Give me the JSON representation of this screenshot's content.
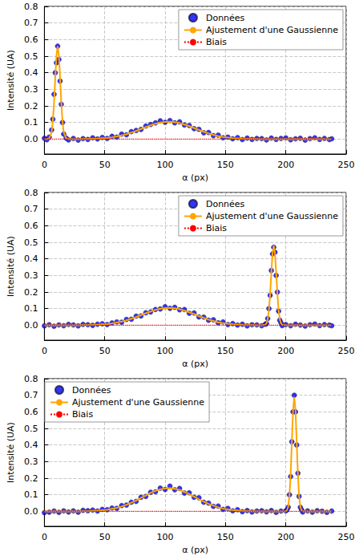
{
  "chart_data": [
    {
      "type": "scatter",
      "xlabel": "α (px)",
      "ylabel": "Intensité (UA)",
      "xlim": [
        0,
        250
      ],
      "xticks": [
        0,
        50,
        100,
        150,
        200,
        250
      ],
      "ylim": [
        -0.09,
        0.8
      ],
      "yticks": [
        {
          "value": 0,
          "label": "0.0"
        },
        0.1,
        0.2,
        0.3,
        0.4,
        0.5,
        0.6,
        0.7,
        0.8
      ],
      "grid": true,
      "legend": "upper right",
      "x": [
        0,
        2,
        4,
        6,
        7,
        8,
        9,
        10,
        11,
        12,
        13,
        14,
        15,
        16,
        18,
        20,
        24,
        28,
        32,
        36,
        40,
        44,
        48,
        52,
        56,
        60,
        64,
        68,
        72,
        76,
        80,
        84,
        88,
        92,
        96,
        100,
        104,
        108,
        112,
        116,
        120,
        124,
        128,
        132,
        136,
        140,
        144,
        148,
        152,
        156,
        160,
        164,
        168,
        172,
        176,
        180,
        184,
        188,
        192,
        196,
        200,
        204,
        208,
        212,
        216,
        220,
        224,
        228,
        232,
        236,
        238
      ],
      "series": [
        {
          "name": "Données",
          "type": "scatter",
          "marker": "circle",
          "color": "#0000ff",
          "values": [
            0.005,
            -0.004,
            0.012,
            0.055,
            0.12,
            0.27,
            0.4,
            0.46,
            0.56,
            0.48,
            0.35,
            0.21,
            0.1,
            0.03,
            0.006,
            -0.005,
            0.004,
            -0.006,
            0.003,
            -0.002,
            0.008,
            0.001,
            0.01,
            0.004,
            0.017,
            0.012,
            0.03,
            0.026,
            0.045,
            0.052,
            0.058,
            0.079,
            0.088,
            0.098,
            0.11,
            0.101,
            0.112,
            0.098,
            0.104,
            0.085,
            0.082,
            0.063,
            0.059,
            0.038,
            0.04,
            0.021,
            0.024,
            0.008,
            0.012,
            0.002,
            0.009,
            -0.003,
            0.006,
            -0.002,
            0.004,
            0.003,
            -0.005,
            0.006,
            -0.002,
            0.004,
            0.007,
            -0.004,
            0.002,
            0.005,
            -0.006,
            0.003,
            0.008,
            -0.002,
            0.004,
            -0.003,
            0.002
          ]
        },
        {
          "name": "Ajustement d'une Gaussienne",
          "type": "line",
          "line_style": "solid",
          "color": "#ffa500",
          "values": [
            0,
            0,
            0.004,
            0.042,
            0.108,
            0.221,
            0.37,
            0.505,
            0.56,
            0.505,
            0.37,
            0.221,
            0.108,
            0.042,
            0.004,
            0.001,
            0,
            0,
            0.001,
            0.001,
            0.002,
            0.003,
            0.005,
            0.007,
            0.011,
            0.016,
            0.022,
            0.03,
            0.039,
            0.049,
            0.061,
            0.072,
            0.083,
            0.093,
            0.1,
            0.104,
            0.105,
            0.102,
            0.097,
            0.088,
            0.078,
            0.067,
            0.055,
            0.044,
            0.034,
            0.026,
            0.018,
            0.013,
            0.009,
            0.006,
            0.004,
            0.002,
            0.001,
            0.001,
            0,
            0,
            0,
            0,
            0,
            0,
            0,
            0,
            0,
            0,
            0,
            0,
            0,
            0,
            0,
            0,
            0
          ]
        },
        {
          "name": "Biais",
          "type": "line",
          "line_style": "dotted",
          "color": "#ff0000",
          "x": [
            0,
            238
          ],
          "values": [
            0,
            0
          ]
        }
      ]
    },
    {
      "type": "scatter",
      "xlabel": "α (px)",
      "ylabel": "Intensité (UA)",
      "xlim": [
        0,
        250
      ],
      "xticks": [
        0,
        50,
        100,
        150,
        200,
        250
      ],
      "ylim": [
        -0.09,
        0.8
      ],
      "yticks": [
        {
          "value": 0,
          "label": "0.0"
        },
        0.1,
        0.2,
        0.3,
        0.4,
        0.5,
        0.6,
        0.7,
        0.8
      ],
      "grid": true,
      "legend": "upper right",
      "x": [
        0,
        4,
        8,
        12,
        16,
        20,
        24,
        28,
        32,
        36,
        40,
        44,
        48,
        52,
        56,
        60,
        64,
        68,
        72,
        76,
        80,
        84,
        88,
        92,
        96,
        100,
        104,
        108,
        112,
        116,
        120,
        124,
        128,
        132,
        136,
        140,
        144,
        148,
        152,
        156,
        160,
        164,
        168,
        172,
        176,
        180,
        183,
        184,
        185,
        186,
        187,
        188,
        189,
        190,
        191,
        192,
        193,
        194,
        195,
        196,
        197,
        200,
        204,
        208,
        212,
        216,
        220,
        224,
        228,
        232,
        236,
        238
      ],
      "series": [
        {
          "name": "Données",
          "type": "scatter",
          "marker": "circle",
          "color": "#0000ff",
          "values": [
            -0.004,
            0.003,
            -0.006,
            0.002,
            -0.003,
            0.005,
            0.002,
            -0.004,
            0.005,
            0.003,
            -0.001,
            0.006,
            0.009,
            0.004,
            0.014,
            0.02,
            0.018,
            0.035,
            0.036,
            0.055,
            0.056,
            0.075,
            0.08,
            0.095,
            0.098,
            0.112,
            0.102,
            0.108,
            0.093,
            0.095,
            0.072,
            0.074,
            0.05,
            0.049,
            0.03,
            0.033,
            0.015,
            0.02,
            0.004,
            0.01,
            0.001,
            0.006,
            -0.004,
            0.003,
            0.002,
            -0.003,
            0.006,
            0.01,
            0.04,
            0.1,
            0.18,
            0.33,
            0.43,
            0.47,
            0.44,
            0.3,
            0.2,
            0.085,
            0.03,
            0.015,
            -0.002,
            0.004,
            -0.003,
            0.006,
            0.001,
            -0.005,
            0.003,
            0.007,
            -0.002,
            0.004,
            0.001,
            -0.003
          ]
        },
        {
          "name": "Ajustement d'une Gaussienne",
          "type": "line",
          "line_style": "solid",
          "color": "#ffa500",
          "values": [
            0,
            0,
            0,
            0,
            0,
            0,
            0,
            0,
            0.001,
            0.001,
            0.002,
            0.003,
            0.005,
            0.007,
            0.011,
            0.016,
            0.022,
            0.03,
            0.039,
            0.049,
            0.061,
            0.072,
            0.083,
            0.093,
            0.1,
            0.104,
            0.105,
            0.102,
            0.097,
            0.088,
            0.078,
            0.067,
            0.055,
            0.044,
            0.034,
            0.026,
            0.018,
            0.013,
            0.009,
            0.006,
            0.004,
            0.002,
            0.001,
            0.001,
            0,
            0,
            0.003,
            0.012,
            0.036,
            0.092,
            0.19,
            0.317,
            0.433,
            0.48,
            0.433,
            0.317,
            0.19,
            0.092,
            0.036,
            0.012,
            0.003,
            0,
            0,
            0,
            0,
            0,
            0,
            0,
            0,
            0,
            0,
            0
          ]
        },
        {
          "name": "Biais",
          "type": "line",
          "line_style": "dotted",
          "color": "#ff0000",
          "x": [
            0,
            238
          ],
          "values": [
            0,
            0
          ]
        }
      ]
    },
    {
      "type": "scatter",
      "xlabel": "α (px)",
      "ylabel": "Intensité (UA)",
      "xlim": [
        0,
        250
      ],
      "xticks": [
        0,
        50,
        100,
        150,
        200,
        250
      ],
      "ylim": [
        -0.09,
        0.8
      ],
      "yticks": [
        {
          "value": 0,
          "label": "0.0"
        },
        0.1,
        0.2,
        0.3,
        0.4,
        0.5,
        0.6,
        0.7,
        0.8
      ],
      "grid": true,
      "legend": "upper left",
      "x": [
        0,
        4,
        8,
        12,
        16,
        20,
        24,
        28,
        32,
        36,
        40,
        44,
        48,
        52,
        56,
        60,
        64,
        68,
        72,
        76,
        80,
        84,
        88,
        92,
        96,
        100,
        104,
        108,
        112,
        116,
        120,
        124,
        128,
        132,
        136,
        140,
        144,
        148,
        152,
        156,
        160,
        164,
        168,
        172,
        176,
        180,
        184,
        188,
        192,
        196,
        200,
        201,
        202,
        203,
        204,
        205,
        206,
        207,
        208,
        209,
        210,
        211,
        212,
        213,
        214,
        218,
        222,
        226,
        230,
        234,
        238
      ],
      "series": [
        {
          "name": "Données",
          "type": "scatter",
          "marker": "circle",
          "color": "#0000ff",
          "values": [
            -0.008,
            -0.005,
            0.002,
            -0.006,
            0.003,
            -0.004,
            0.003,
            -0.005,
            0.006,
            0.004,
            0.008,
            0.002,
            0.012,
            0.01,
            0.02,
            0.018,
            0.035,
            0.038,
            0.055,
            0.06,
            0.085,
            0.09,
            0.115,
            0.118,
            0.14,
            0.132,
            0.152,
            0.13,
            0.138,
            0.11,
            0.112,
            0.085,
            0.082,
            0.055,
            0.05,
            0.03,
            0.032,
            0.012,
            0.018,
            0.003,
            0.01,
            -0.002,
            0.005,
            -0.004,
            0.002,
            0.004,
            -0.003,
            0.005,
            -0.006,
            0.002,
            0.003,
            0.01,
            0.025,
            0.1,
            0.21,
            0.42,
            0.6,
            0.7,
            0.6,
            0.4,
            0.23,
            0.09,
            0.025,
            0.01,
            -0.004,
            0.003,
            -0.005,
            0.004,
            0.001,
            -0.006,
            0.002
          ]
        },
        {
          "name": "Ajustement d'une Gaussienne",
          "type": "line",
          "line_style": "solid",
          "color": "#ffa500",
          "values": [
            0,
            0,
            0,
            0,
            0,
            0,
            0,
            0,
            0.001,
            0.001,
            0.003,
            0.004,
            0.007,
            0.009,
            0.015,
            0.021,
            0.029,
            0.04,
            0.052,
            0.065,
            0.081,
            0.096,
            0.111,
            0.124,
            0.133,
            0.139,
            0.14,
            0.136,
            0.129,
            0.117,
            0.104,
            0.089,
            0.073,
            0.059,
            0.045,
            0.035,
            0.024,
            0.017,
            0.012,
            0.008,
            0.005,
            0.003,
            0.001,
            0.001,
            0,
            0,
            0,
            0,
            0,
            0,
            0.001,
            0.008,
            0.03,
            0.093,
            0.224,
            0.419,
            0.609,
            0.69,
            0.609,
            0.419,
            0.224,
            0.093,
            0.03,
            0.008,
            0.001,
            0,
            0,
            0,
            0,
            0,
            0
          ]
        },
        {
          "name": "Biais",
          "type": "line",
          "line_style": "dotted",
          "color": "#ff0000",
          "x": [
            0,
            238
          ],
          "values": [
            0,
            0
          ]
        }
      ]
    }
  ]
}
